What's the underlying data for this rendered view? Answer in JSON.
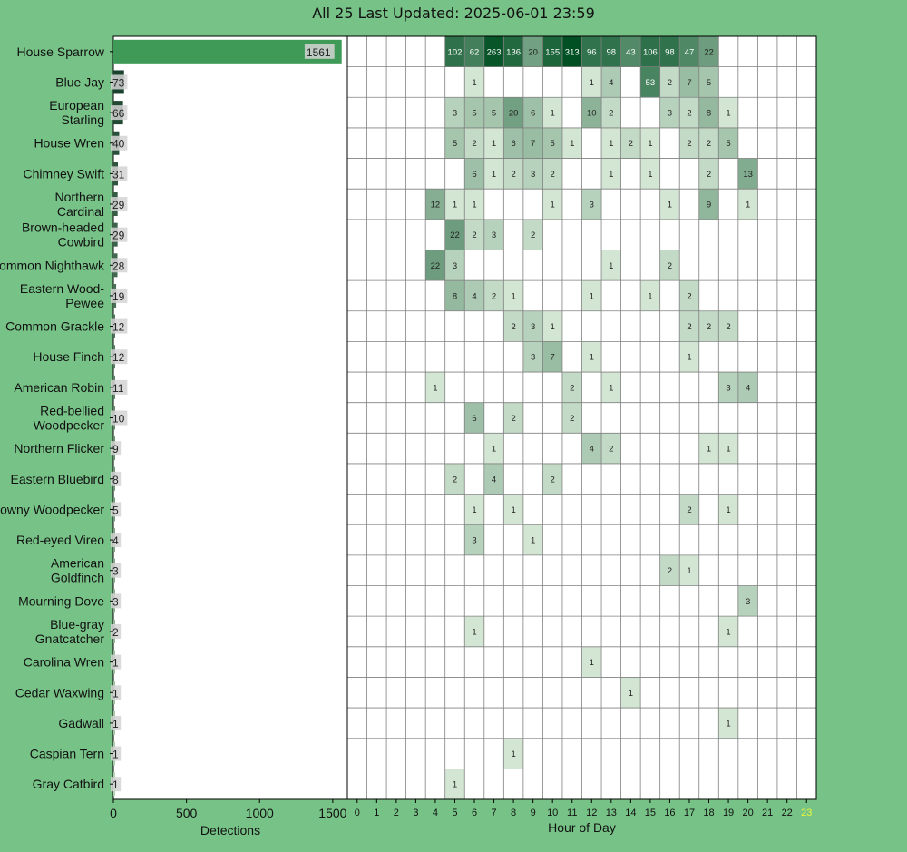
{
  "header": {
    "title": "All 25 Last Updated: 2025-06-01 23:59"
  },
  "colors": {
    "background": "#77c387",
    "bar": "#3f9a57",
    "label_box": "#d3d3d3",
    "grid": "#808080",
    "current_hour": "#e8f53a"
  },
  "chart_data": [
    {
      "type": "bar",
      "orientation": "horizontal",
      "xlabel": "Detections",
      "xticks": [
        0,
        500,
        1000,
        1500
      ],
      "xlim": [
        0,
        1600
      ],
      "categories": [
        "House Sparrow",
        "Blue Jay",
        "European Starling",
        "House Wren",
        "Chimney Swift",
        "Northern Cardinal",
        "Brown-headed Cowbird",
        "Common Nighthawk",
        "Eastern Wood-Pewee",
        "Common Grackle",
        "House Finch",
        "American Robin",
        "Red-bellied Woodpecker",
        "Northern Flicker",
        "Eastern Bluebird",
        "Downy Woodpecker",
        "Red-eyed Vireo",
        "American Goldfinch",
        "Mourning Dove",
        "Blue-gray Gnatcatcher",
        "Carolina Wren",
        "Cedar Waxwing",
        "Gadwall",
        "Caspian Tern",
        "Gray Catbird"
      ],
      "category_labels": [
        [
          "House Sparrow"
        ],
        [
          "Blue Jay"
        ],
        [
          "European",
          "Starling"
        ],
        [
          "House Wren"
        ],
        [
          "Chimney Swift"
        ],
        [
          "Northern",
          "Cardinal"
        ],
        [
          "Brown-headed",
          "Cowbird"
        ],
        [
          "Common Nighthawk"
        ],
        [
          "Eastern Wood-",
          "Pewee"
        ],
        [
          "Common Grackle"
        ],
        [
          "House Finch"
        ],
        [
          "American Robin"
        ],
        [
          "Red-bellied",
          "Woodpecker"
        ],
        [
          "Northern Flicker"
        ],
        [
          "Eastern Bluebird"
        ],
        [
          "Downy Woodpecker"
        ],
        [
          "Red-eyed Vireo"
        ],
        [
          "American",
          "Goldfinch"
        ],
        [
          "Mourning Dove"
        ],
        [
          "Blue-gray",
          "Gnatcatcher"
        ],
        [
          "Carolina Wren"
        ],
        [
          "Cedar Waxwing"
        ],
        [
          "Gadwall"
        ],
        [
          "Caspian Tern"
        ],
        [
          "Gray Catbird"
        ]
      ],
      "values": [
        1561,
        73,
        66,
        40,
        31,
        29,
        29,
        28,
        19,
        12,
        12,
        11,
        10,
        9,
        8,
        5,
        4,
        3,
        3,
        2,
        1,
        1,
        1,
        1,
        1
      ]
    },
    {
      "type": "heatmap",
      "xlabel": "Hour of Day",
      "x": [
        "0",
        "1",
        "2",
        "3",
        "4",
        "5",
        "6",
        "7",
        "8",
        "9",
        "10",
        "11",
        "12",
        "13",
        "14",
        "15",
        "16",
        "17",
        "18",
        "19",
        "20",
        "21",
        "22",
        "23"
      ],
      "current_hour": "23",
      "rows": [
        [
          0,
          0,
          0,
          0,
          0,
          102,
          62,
          263,
          136,
          20,
          155,
          313,
          96,
          98,
          43,
          106,
          98,
          47,
          22,
          0,
          0,
          0,
          0,
          0
        ],
        [
          0,
          0,
          0,
          0,
          0,
          0,
          1,
          0,
          0,
          0,
          0,
          0,
          1,
          4,
          0,
          53,
          2,
          7,
          5,
          0,
          0,
          0,
          0,
          0
        ],
        [
          0,
          0,
          0,
          0,
          0,
          3,
          5,
          5,
          20,
          6,
          1,
          0,
          10,
          2,
          0,
          0,
          3,
          2,
          8,
          1,
          0,
          0,
          0,
          0
        ],
        [
          0,
          0,
          0,
          0,
          0,
          5,
          2,
          1,
          6,
          7,
          5,
          1,
          0,
          1,
          2,
          1,
          0,
          2,
          2,
          5,
          0,
          0,
          0,
          0
        ],
        [
          0,
          0,
          0,
          0,
          0,
          0,
          6,
          1,
          2,
          3,
          2,
          0,
          0,
          1,
          0,
          1,
          0,
          0,
          2,
          0,
          13,
          0,
          0,
          0
        ],
        [
          0,
          0,
          0,
          0,
          12,
          1,
          1,
          0,
          0,
          0,
          1,
          0,
          3,
          0,
          0,
          0,
          1,
          0,
          9,
          0,
          1,
          0,
          0,
          0
        ],
        [
          0,
          0,
          0,
          0,
          0,
          22,
          2,
          3,
          0,
          2,
          0,
          0,
          0,
          0,
          0,
          0,
          0,
          0,
          0,
          0,
          0,
          0,
          0,
          0
        ],
        [
          0,
          0,
          0,
          0,
          22,
          3,
          0,
          0,
          0,
          0,
          0,
          0,
          0,
          1,
          0,
          0,
          2,
          0,
          0,
          0,
          0,
          0,
          0,
          0
        ],
        [
          0,
          0,
          0,
          0,
          0,
          8,
          4,
          2,
          1,
          0,
          0,
          0,
          1,
          0,
          0,
          1,
          0,
          2,
          0,
          0,
          0,
          0,
          0,
          0
        ],
        [
          0,
          0,
          0,
          0,
          0,
          0,
          0,
          0,
          2,
          3,
          1,
          0,
          0,
          0,
          0,
          0,
          0,
          2,
          2,
          2,
          0,
          0,
          0,
          0
        ],
        [
          0,
          0,
          0,
          0,
          0,
          0,
          0,
          0,
          0,
          3,
          7,
          0,
          1,
          0,
          0,
          0,
          0,
          1,
          0,
          0,
          0,
          0,
          0,
          0
        ],
        [
          0,
          0,
          0,
          0,
          1,
          0,
          0,
          0,
          0,
          0,
          0,
          2,
          0,
          1,
          0,
          0,
          0,
          0,
          0,
          3,
          4,
          0,
          0,
          0
        ],
        [
          0,
          0,
          0,
          0,
          0,
          0,
          6,
          0,
          2,
          0,
          0,
          2,
          0,
          0,
          0,
          0,
          0,
          0,
          0,
          0,
          0,
          0,
          0,
          0
        ],
        [
          0,
          0,
          0,
          0,
          0,
          0,
          0,
          1,
          0,
          0,
          0,
          0,
          4,
          2,
          0,
          0,
          0,
          0,
          1,
          1,
          0,
          0,
          0,
          0
        ],
        [
          0,
          0,
          0,
          0,
          0,
          2,
          0,
          4,
          0,
          0,
          2,
          0,
          0,
          0,
          0,
          0,
          0,
          0,
          0,
          0,
          0,
          0,
          0,
          0
        ],
        [
          0,
          0,
          0,
          0,
          0,
          0,
          1,
          0,
          1,
          0,
          0,
          0,
          0,
          0,
          0,
          0,
          0,
          2,
          0,
          1,
          0,
          0,
          0,
          0
        ],
        [
          0,
          0,
          0,
          0,
          0,
          0,
          3,
          0,
          0,
          1,
          0,
          0,
          0,
          0,
          0,
          0,
          0,
          0,
          0,
          0,
          0,
          0,
          0,
          0
        ],
        [
          0,
          0,
          0,
          0,
          0,
          0,
          0,
          0,
          0,
          0,
          0,
          0,
          0,
          0,
          0,
          0,
          2,
          1,
          0,
          0,
          0,
          0,
          0,
          0
        ],
        [
          0,
          0,
          0,
          0,
          0,
          0,
          0,
          0,
          0,
          0,
          0,
          0,
          0,
          0,
          0,
          0,
          0,
          0,
          0,
          0,
          3,
          0,
          0,
          0
        ],
        [
          0,
          0,
          0,
          0,
          0,
          0,
          1,
          0,
          0,
          0,
          0,
          0,
          0,
          0,
          0,
          0,
          0,
          0,
          0,
          1,
          0,
          0,
          0,
          0
        ],
        [
          0,
          0,
          0,
          0,
          0,
          0,
          0,
          0,
          0,
          0,
          0,
          0,
          1,
          0,
          0,
          0,
          0,
          0,
          0,
          0,
          0,
          0,
          0,
          0
        ],
        [
          0,
          0,
          0,
          0,
          0,
          0,
          0,
          0,
          0,
          0,
          0,
          0,
          0,
          0,
          1,
          0,
          0,
          0,
          0,
          0,
          0,
          0,
          0,
          0
        ],
        [
          0,
          0,
          0,
          0,
          0,
          0,
          0,
          0,
          0,
          0,
          0,
          0,
          0,
          0,
          0,
          0,
          0,
          0,
          0,
          1,
          0,
          0,
          0,
          0
        ],
        [
          0,
          0,
          0,
          0,
          0,
          0,
          0,
          0,
          1,
          0,
          0,
          0,
          0,
          0,
          0,
          0,
          0,
          0,
          0,
          0,
          0,
          0,
          0,
          0
        ],
        [
          0,
          0,
          0,
          0,
          0,
          1,
          0,
          0,
          0,
          0,
          0,
          0,
          0,
          0,
          0,
          0,
          0,
          0,
          0,
          0,
          0,
          0,
          0,
          0
        ]
      ]
    }
  ]
}
